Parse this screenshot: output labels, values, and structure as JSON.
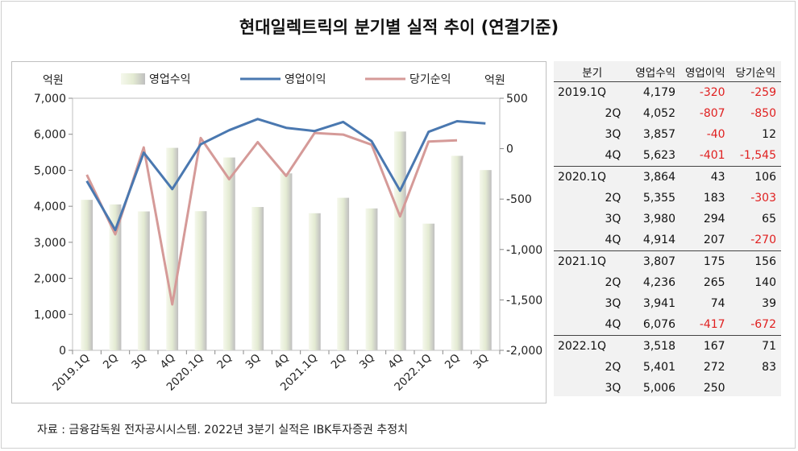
{
  "title": "현대일렉트릭의 분기별 실적 추이 (연결기준)",
  "source": "자료 : 금융감독원 전자공시시스템. 2022년 3분기 실적은 IBK투자증권 추정치",
  "colors": {
    "bar": "#e4ebd3",
    "operating_profit_line": "#4a78b0",
    "net_income_line": "#d59a98",
    "negative_text": "#e02020"
  },
  "chart_data": {
    "type": "bar+line",
    "categories": [
      "2019.1Q",
      "2Q",
      "3Q",
      "4Q",
      "2020.1Q",
      "2Q",
      "3Q",
      "4Q",
      "2021.1Q",
      "2Q",
      "3Q",
      "4Q",
      "2022.1Q",
      "2Q",
      "3Q"
    ],
    "left_axis_unit": "억원",
    "right_axis_unit": "억원",
    "ylim_left": [
      0,
      7000
    ],
    "ylim_right": [
      -2000,
      500
    ],
    "yticks_left": [
      0,
      1000,
      2000,
      3000,
      4000,
      5000,
      6000,
      7000
    ],
    "yticks_left_labels": [
      "0",
      "1,000",
      "2,000",
      "3,000",
      "4,000",
      "5,000",
      "6,000",
      "7,000"
    ],
    "yticks_right": [
      500,
      0,
      -500,
      -1000,
      -1500,
      -2000
    ],
    "yticks_right_labels": [
      "500",
      "0",
      "-500",
      "-1,000",
      "-1,500",
      "-2,000"
    ],
    "legend": [
      "영업수익",
      "영업이익",
      "당기순익"
    ],
    "legend_position": "top",
    "series": [
      {
        "name": "영업수익",
        "type": "bar",
        "axis": "left",
        "values": [
          4179,
          4052,
          3857,
          5623,
          3864,
          5355,
          3980,
          4914,
          3807,
          4236,
          3941,
          6076,
          3518,
          5401,
          5006
        ]
      },
      {
        "name": "영업이익",
        "type": "line",
        "axis": "right",
        "values": [
          -320,
          -807,
          -40,
          -401,
          43,
          183,
          294,
          207,
          175,
          265,
          74,
          -417,
          167,
          272,
          250
        ]
      },
      {
        "name": "당기순익",
        "type": "line",
        "axis": "right",
        "values": [
          -259,
          -850,
          12,
          -1545,
          106,
          -303,
          65,
          -270,
          156,
          140,
          39,
          -672,
          71,
          83,
          null
        ]
      }
    ]
  },
  "table": {
    "headers": [
      "분기",
      "영업수익",
      "영업이익",
      "당기순익"
    ],
    "rows": [
      {
        "q": "2019.1Q",
        "rev": "4,179",
        "op": "-320",
        "net": "-259"
      },
      {
        "q": "2Q",
        "rev": "4,052",
        "op": "-807",
        "net": "-850"
      },
      {
        "q": "3Q",
        "rev": "3,857",
        "op": "-40",
        "net": "12"
      },
      {
        "q": "4Q",
        "rev": "5,623",
        "op": "-401",
        "net": "-1,545"
      },
      {
        "q": "2020.1Q",
        "rev": "3,864",
        "op": "43",
        "net": "106"
      },
      {
        "q": "2Q",
        "rev": "5,355",
        "op": "183",
        "net": "-303"
      },
      {
        "q": "3Q",
        "rev": "3,980",
        "op": "294",
        "net": "65"
      },
      {
        "q": "4Q",
        "rev": "4,914",
        "op": "207",
        "net": "-270"
      },
      {
        "q": "2021.1Q",
        "rev": "3,807",
        "op": "175",
        "net": "156"
      },
      {
        "q": "2Q",
        "rev": "4,236",
        "op": "265",
        "net": "140"
      },
      {
        "q": "3Q",
        "rev": "3,941",
        "op": "74",
        "net": "39"
      },
      {
        "q": "4Q",
        "rev": "6,076",
        "op": "-417",
        "net": "-672"
      },
      {
        "q": "2022.1Q",
        "rev": "3,518",
        "op": "167",
        "net": "71"
      },
      {
        "q": "2Q",
        "rev": "5,401",
        "op": "272",
        "net": "83"
      },
      {
        "q": "3Q",
        "rev": "5,006",
        "op": "250",
        "net": ""
      }
    ]
  }
}
